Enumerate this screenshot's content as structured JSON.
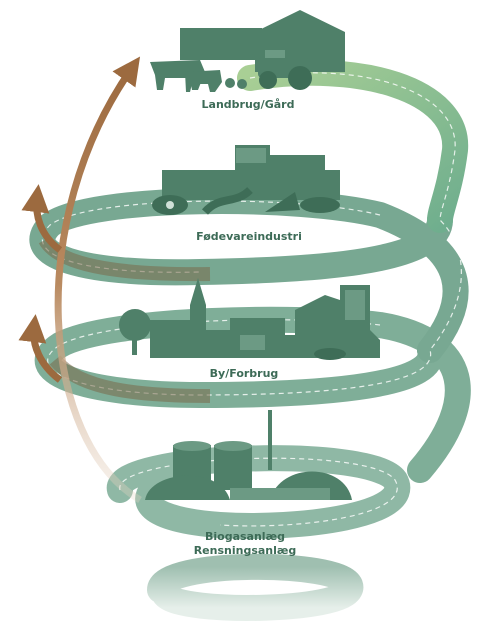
{
  "stages": [
    {
      "label": "Landbrug/Gård"
    },
    {
      "label": "Fødevareindustri"
    },
    {
      "label": "By/Forbrug"
    },
    {
      "label_lines": [
        "Biogasanlæg",
        "Rensningsanlæg"
      ]
    }
  ]
}
